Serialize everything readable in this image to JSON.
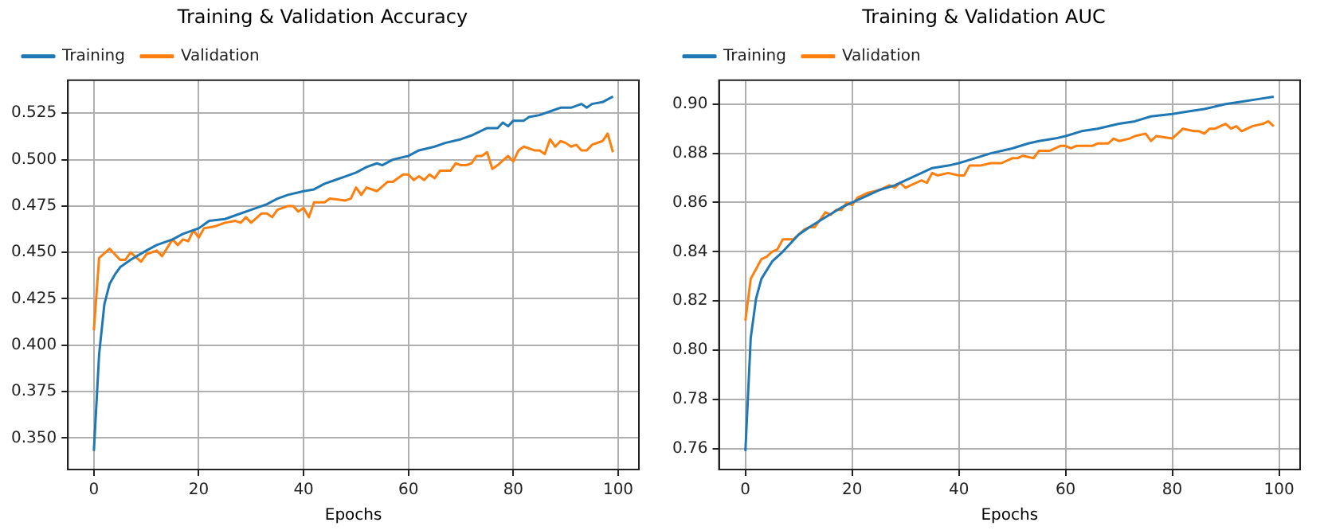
{
  "chart_data": [
    {
      "type": "line",
      "title": "Training & Validation Accuracy",
      "xlabel": "Epochs",
      "legend": "top left",
      "grid": true,
      "marker": "none",
      "line_style": "solid",
      "xlim": [
        -4.95,
        103.95
      ],
      "xticks": [
        0,
        20,
        40,
        60,
        80,
        100
      ],
      "ylim": [
        0.333,
        0.5428
      ],
      "yticks": [
        {
          "value": 0.35,
          "label": "0.350"
        },
        {
          "value": 0.375,
          "label": "0.375"
        },
        {
          "value": 0.4,
          "label": "0.400"
        },
        {
          "value": 0.425,
          "label": "0.425"
        },
        {
          "value": 0.45,
          "label": "0.450"
        },
        {
          "value": 0.475,
          "label": "0.475"
        },
        {
          "value": 0.5,
          "label": "0.500"
        },
        {
          "value": 0.525,
          "label": "0.525"
        }
      ],
      "series": [
        {
          "name": "Training",
          "color": "#1f77b4",
          "x": [
            0,
            1,
            2,
            3,
            4,
            5,
            7,
            10,
            12,
            15,
            17,
            20,
            22,
            25,
            28,
            30,
            33,
            35,
            37,
            40,
            42,
            44,
            46,
            48,
            50,
            52,
            54,
            55,
            57,
            60,
            62,
            65,
            67,
            70,
            72,
            75,
            77,
            78,
            79,
            80,
            82,
            83,
            85,
            87,
            89,
            91,
            93,
            94,
            95,
            97,
            99
          ],
          "values": [
            0.343,
            0.395,
            0.422,
            0.433,
            0.438,
            0.442,
            0.446,
            0.451,
            0.454,
            0.457,
            0.46,
            0.463,
            0.467,
            0.468,
            0.471,
            0.473,
            0.476,
            0.479,
            0.481,
            0.483,
            0.484,
            0.487,
            0.489,
            0.491,
            0.493,
            0.496,
            0.498,
            0.497,
            0.5,
            0.502,
            0.505,
            0.507,
            0.509,
            0.511,
            0.513,
            0.517,
            0.517,
            0.52,
            0.518,
            0.521,
            0.521,
            0.523,
            0.524,
            0.526,
            0.528,
            0.528,
            0.53,
            0.528,
            0.53,
            0.531,
            0.534
          ]
        },
        {
          "name": "Validation",
          "color": "#ff7f0e",
          "x": [
            0,
            1,
            3,
            5,
            6,
            7,
            9,
            10,
            12,
            13,
            15,
            16,
            17,
            18,
            19,
            20,
            21,
            23,
            25,
            27,
            28,
            29,
            30,
            32,
            33,
            34,
            35,
            37,
            38,
            39,
            40,
            41,
            42,
            44,
            45,
            48,
            49,
            50,
            51,
            52,
            54,
            56,
            57,
            59,
            60,
            61,
            62,
            63,
            64,
            65,
            66,
            68,
            69,
            70,
            71,
            72,
            73,
            74,
            75,
            76,
            77,
            79,
            80,
            81,
            82,
            84,
            85,
            86,
            87,
            88,
            89,
            90,
            91,
            92,
            93,
            94,
            95,
            97,
            98,
            99
          ],
          "values": [
            0.408,
            0.447,
            0.452,
            0.446,
            0.446,
            0.45,
            0.445,
            0.449,
            0.451,
            0.448,
            0.457,
            0.454,
            0.457,
            0.456,
            0.462,
            0.458,
            0.463,
            0.464,
            0.466,
            0.467,
            0.466,
            0.469,
            0.466,
            0.471,
            0.471,
            0.469,
            0.473,
            0.475,
            0.475,
            0.472,
            0.474,
            0.469,
            0.477,
            0.477,
            0.479,
            0.478,
            0.479,
            0.485,
            0.481,
            0.485,
            0.483,
            0.488,
            0.488,
            0.492,
            0.492,
            0.489,
            0.491,
            0.489,
            0.492,
            0.49,
            0.494,
            0.494,
            0.498,
            0.497,
            0.497,
            0.498,
            0.502,
            0.502,
            0.504,
            0.495,
            0.497,
            0.502,
            0.499,
            0.505,
            0.507,
            0.505,
            0.505,
            0.503,
            0.511,
            0.507,
            0.51,
            0.509,
            0.507,
            0.508,
            0.505,
            0.505,
            0.508,
            0.51,
            0.514,
            0.504
          ]
        }
      ]
    },
    {
      "type": "line",
      "title": "Training & Validation AUC",
      "xlabel": "Epochs",
      "legend": "top left",
      "grid": true,
      "marker": "none",
      "line_style": "solid",
      "xlim": [
        -4.95,
        103.95
      ],
      "xticks": [
        0,
        20,
        40,
        60,
        80,
        100
      ],
      "ylim": [
        0.7515,
        0.9097
      ],
      "yticks": [
        {
          "value": 0.76,
          "label": "0.76"
        },
        {
          "value": 0.78,
          "label": "0.78"
        },
        {
          "value": 0.8,
          "label": "0.80"
        },
        {
          "value": 0.82,
          "label": "0.82"
        },
        {
          "value": 0.84,
          "label": "0.84"
        },
        {
          "value": 0.86,
          "label": "0.86"
        },
        {
          "value": 0.88,
          "label": "0.88"
        },
        {
          "value": 0.9,
          "label": "0.90"
        }
      ],
      "series": [
        {
          "name": "Training",
          "color": "#1f77b4",
          "x": [
            0,
            1,
            2,
            3,
            5,
            7,
            10,
            12,
            15,
            18,
            20,
            22,
            25,
            28,
            30,
            33,
            35,
            38,
            40,
            43,
            46,
            50,
            53,
            55,
            58,
            60,
            63,
            66,
            70,
            73,
            76,
            80,
            83,
            86,
            90,
            93,
            96,
            99
          ],
          "values": [
            0.759,
            0.805,
            0.821,
            0.829,
            0.836,
            0.84,
            0.847,
            0.85,
            0.854,
            0.858,
            0.86,
            0.862,
            0.865,
            0.867,
            0.869,
            0.872,
            0.874,
            0.875,
            0.876,
            0.878,
            0.88,
            0.882,
            0.884,
            0.885,
            0.886,
            0.887,
            0.889,
            0.89,
            0.892,
            0.893,
            0.895,
            0.896,
            0.897,
            0.898,
            0.9,
            0.901,
            0.902,
            0.903
          ]
        },
        {
          "name": "Validation",
          "color": "#ff7f0e",
          "x": [
            0,
            1,
            2,
            3,
            4,
            5,
            6,
            7,
            9,
            10,
            11,
            12,
            13,
            14,
            15,
            16,
            17,
            18,
            19,
            20,
            21,
            23,
            25,
            27,
            28,
            29,
            30,
            32,
            33,
            34,
            35,
            36,
            38,
            40,
            41,
            42,
            44,
            46,
            48,
            50,
            51,
            52,
            54,
            55,
            57,
            59,
            60,
            61,
            62,
            64,
            65,
            66,
            68,
            69,
            70,
            72,
            73,
            75,
            76,
            77,
            80,
            81,
            82,
            84,
            85,
            86,
            87,
            88,
            89,
            90,
            91,
            92,
            93,
            95,
            97,
            98,
            99
          ],
          "values": [
            0.812,
            0.829,
            0.833,
            0.837,
            0.838,
            0.84,
            0.841,
            0.845,
            0.845,
            0.847,
            0.849,
            0.85,
            0.85,
            0.853,
            0.856,
            0.855,
            0.857,
            0.857,
            0.86,
            0.859,
            0.862,
            0.864,
            0.865,
            0.867,
            0.866,
            0.868,
            0.866,
            0.868,
            0.869,
            0.868,
            0.872,
            0.871,
            0.872,
            0.871,
            0.871,
            0.875,
            0.875,
            0.876,
            0.876,
            0.878,
            0.878,
            0.879,
            0.878,
            0.881,
            0.881,
            0.883,
            0.883,
            0.882,
            0.883,
            0.883,
            0.883,
            0.884,
            0.884,
            0.886,
            0.885,
            0.886,
            0.887,
            0.888,
            0.885,
            0.887,
            0.886,
            0.888,
            0.89,
            0.889,
            0.889,
            0.888,
            0.89,
            0.89,
            0.891,
            0.892,
            0.89,
            0.891,
            0.889,
            0.891,
            0.892,
            0.893,
            0.891
          ]
        }
      ]
    }
  ]
}
